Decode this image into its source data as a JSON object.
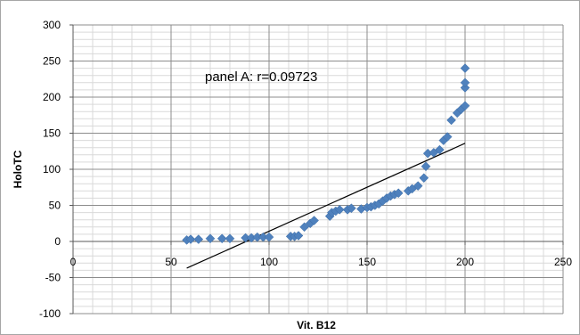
{
  "chart_data": {
    "type": "scatter",
    "xlabel": "Vit. B12",
    "ylabel": "HoloTC",
    "xlim": [
      0,
      250
    ],
    "ylim": [
      -100,
      300
    ],
    "xticks": [
      0,
      50,
      100,
      150,
      200,
      250
    ],
    "yticks": [
      -100,
      -50,
      0,
      50,
      100,
      150,
      200,
      250,
      300
    ],
    "grid": {
      "major_step_x": 50,
      "minor_step_x": 10,
      "major_step_y": 50,
      "minor_step_y": 10
    },
    "legend": "none",
    "annotation": "panel A: r=0.09723",
    "marker_color": "#4f81bd",
    "marker_shape": "diamond",
    "trendline": {
      "type": "linear",
      "color": "#000000",
      "x": [
        58,
        200
      ],
      "y": [
        -37,
        136
      ]
    },
    "points": [
      [
        58,
        2
      ],
      [
        60,
        3
      ],
      [
        64,
        3
      ],
      [
        70,
        4
      ],
      [
        76,
        4
      ],
      [
        80,
        4
      ],
      [
        88,
        5
      ],
      [
        91,
        5
      ],
      [
        94,
        6
      ],
      [
        97,
        6
      ],
      [
        100,
        6
      ],
      [
        111,
        7
      ],
      [
        113,
        7
      ],
      [
        115,
        8
      ],
      [
        118,
        20
      ],
      [
        121,
        25
      ],
      [
        123,
        29
      ],
      [
        131,
        35
      ],
      [
        132,
        40
      ],
      [
        134,
        42
      ],
      [
        136,
        44
      ],
      [
        140,
        44
      ],
      [
        142,
        46
      ],
      [
        147,
        45
      ],
      [
        150,
        47
      ],
      [
        152,
        48
      ],
      [
        154,
        50
      ],
      [
        156,
        52
      ],
      [
        158,
        56
      ],
      [
        160,
        60
      ],
      [
        162,
        63
      ],
      [
        164,
        65
      ],
      [
        166,
        67
      ],
      [
        171,
        70
      ],
      [
        173,
        73
      ],
      [
        176,
        77
      ],
      [
        179,
        88
      ],
      [
        180,
        104
      ],
      [
        181,
        122
      ],
      [
        184,
        123
      ],
      [
        187,
        127
      ],
      [
        189,
        140
      ],
      [
        191,
        145
      ],
      [
        193,
        168
      ],
      [
        196,
        178
      ],
      [
        198,
        183
      ],
      [
        200,
        188
      ],
      [
        200,
        213
      ],
      [
        200,
        220
      ],
      [
        200,
        240
      ]
    ]
  }
}
